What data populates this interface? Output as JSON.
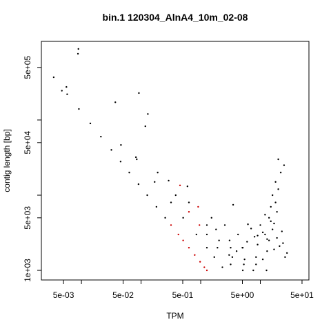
{
  "chart_data": {
    "type": "scatter",
    "title": "bin.1 120304_AlnA4_10m_02-08",
    "x_label": "TPM",
    "y_label": "contig length [bp]",
    "log_x": true,
    "log_y": true,
    "xlim": [
      0.00213,
      65.3
    ],
    "ylim": [
      745,
      1110000
    ],
    "xticks": [
      {
        "value": 0.005,
        "label": "5e-03"
      },
      {
        "value": 0.05,
        "label": "5e-02"
      },
      {
        "value": 0.5,
        "label": "5e-01"
      },
      {
        "value": 5,
        "label": "5e+00"
      },
      {
        "value": 50,
        "label": "5e+01"
      }
    ],
    "xminor_ticks": [
      0.01,
      0.1,
      1,
      10
    ],
    "yticks": [
      {
        "value": 1000,
        "label": "1e+03"
      },
      {
        "value": 5000,
        "label": "5e+03"
      },
      {
        "value": 50000,
        "label": "5e+04"
      },
      {
        "value": 500000,
        "label": "5e+05"
      }
    ],
    "yminor_ticks": [
      10000,
      100000
    ],
    "series": [
      {
        "color": "#000000",
        "x": [
          0.00343,
          0.00577,
          0.00907,
          0.0141,
          0.0212,
          0.0318,
          0.0454,
          0.0635,
          0.0907,
          0.127,
          0.181,
          0.254,
          0.0847,
          0.169,
          0.318,
          0.508,
          0.847,
          1.27,
          1.69,
          2.31,
          0.19,
          0.381,
          1.27,
          1.91,
          3.18,
          0.635,
          1.27,
          2.03,
          3.39,
          5.08,
          1.81,
          3.18,
          5.29,
          1.52,
          3.05,
          5.44,
          7.62,
          2.54,
          5.08,
          8.47,
          4.23,
          8.47,
          12.7,
          0.0047,
          0.0056,
          0.00875,
          0.0089,
          0.037,
          0.092,
          0.118,
          0.13,
          0.046,
          0.082,
          0.29,
          0.6,
          3.5,
          6.2,
          12,
          15,
          18,
          20,
          22,
          25,
          14,
          16,
          19,
          9,
          11,
          8,
          6,
          5,
          4,
          3,
          10,
          13,
          17,
          21,
          24,
          28,
          7,
          12,
          15,
          18,
          20,
          16,
          14,
          19,
          23,
          26,
          11,
          9,
          13,
          17
        ],
        "values": [
          370000,
          220000,
          140000,
          90000,
          60000,
          40000,
          28000,
          20000,
          14000,
          10000,
          7000,
          5000,
          30000,
          15000,
          8000,
          5000,
          3000,
          2000,
          1500,
          1100,
          20000,
          10000,
          3000,
          2000,
          1200,
          8000,
          4000,
          2500,
          1500,
          1000,
          3500,
          2000,
          1200,
          5000,
          2500,
          1400,
          1000,
          4000,
          2000,
          1200,
          3000,
          1500,
          1000,
          245000,
          275000,
          760000,
          880000,
          172000,
          228000,
          82500,
          120000,
          46500,
          32000,
          15600,
          13100,
          7450,
          4100,
          3000,
          4500,
          8000,
          12000,
          20000,
          25000,
          2500,
          3500,
          6000,
          2200,
          3200,
          2800,
          2400,
          2000,
          1800,
          1600,
          4000,
          2600,
          1900,
          2100,
          2300,
          1700,
          3600,
          5500,
          7000,
          15000,
          30000,
          10000,
          5000,
          2700,
          3300,
          1500,
          1400,
          2900,
          1800,
          4200
        ]
      },
      {
        "color": "#cc0000",
        "x": [
          0.318,
          0.423,
          0.508,
          0.635,
          0.794,
          0.977,
          1.15,
          1.27,
          0.635,
          0.953,
          0.907,
          0.45
        ],
        "values": [
          4000,
          3000,
          2500,
          2000,
          1600,
          1300,
          1100,
          1000,
          6000,
          4000,
          7000,
          13500
        ]
      }
    ]
  }
}
